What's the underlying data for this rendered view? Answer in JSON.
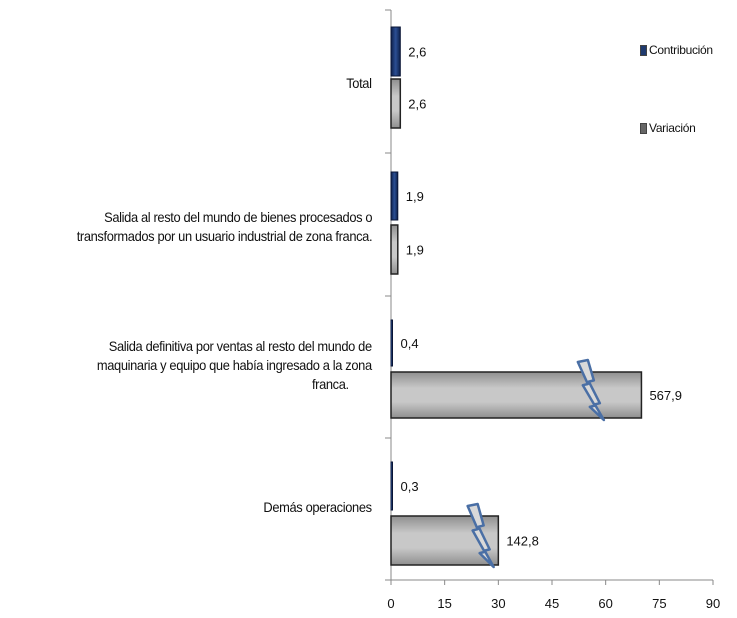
{
  "chart_data": {
    "type": "bar",
    "orientation": "horizontal",
    "categories": [
      "Total",
      "Salida al resto del mundo de bienes procesados o transformados por un usuario industrial de zona franca.",
      "Salida definitiva por ventas al resto del mundo de maquinaria y equipo que había ingresado a la zona franca.",
      "Demás operaciones"
    ],
    "category_lines": [
      [
        "Total"
      ],
      [
        "Salida al resto del mundo de bienes procesados o",
        "transformados por un usuario industrial de zona franca."
      ],
      [
        "Salida definitiva por ventas al resto del mundo de",
        "maquinaria y equipo que había ingresado a la zona",
        "franca."
      ],
      [
        "Demás operaciones"
      ]
    ],
    "series": [
      {
        "name": "Contribución",
        "values": [
          2.6,
          1.9,
          0.4,
          0.3
        ],
        "labels": [
          "2,6",
          "1,9",
          "0,4",
          "0,3"
        ],
        "color": "#1f3a6e"
      },
      {
        "name": "Variación",
        "values": [
          2.6,
          1.9,
          567.9,
          142.8
        ],
        "labels": [
          "2,6",
          "1,9",
          "567,9",
          "142,8"
        ],
        "color": "#b8b8b8"
      }
    ],
    "xlim": [
      0,
      90
    ],
    "xticks": [
      0,
      15,
      30,
      45,
      60,
      75,
      90
    ],
    "xtick_labels": [
      "0",
      "15",
      "30",
      "45",
      "60",
      "75",
      "90"
    ],
    "axis_break": {
      "shown_on": "Variación",
      "broken_values": [
        567.9,
        142.8
      ],
      "drawn_extent": [
        70,
        30
      ]
    },
    "legend_position": "top-right",
    "grid": false,
    "title": "",
    "xlabel": "",
    "ylabel": ""
  }
}
